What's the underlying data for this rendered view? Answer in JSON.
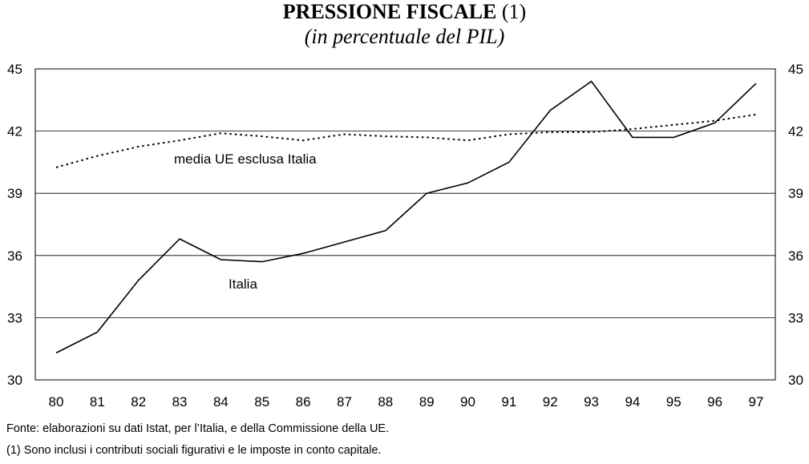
{
  "chart_data": {
    "type": "line",
    "title": "PRESSIONE FISCALE",
    "title_suffix": "(1)",
    "subtitle": "(in percentuale del PIL)",
    "xlabel": "",
    "ylabel": "",
    "categories": [
      "80",
      "81",
      "82",
      "83",
      "84",
      "85",
      "86",
      "87",
      "88",
      "89",
      "90",
      "91",
      "92",
      "93",
      "94",
      "95",
      "96",
      "97"
    ],
    "ylim": [
      30,
      45
    ],
    "yticks": [
      30,
      33,
      36,
      39,
      42,
      45
    ],
    "grid": true,
    "legend": "none",
    "series": [
      {
        "name": "Italia",
        "style": "solid",
        "values": [
          31.3,
          32.3,
          34.8,
          36.8,
          35.8,
          35.7,
          36.1,
          36.65,
          37.2,
          39.0,
          39.5,
          40.5,
          43.0,
          44.4,
          41.7,
          41.7,
          42.4,
          44.3
        ]
      },
      {
        "name": "media UE esclusa Italia",
        "style": "dotted",
        "values": [
          40.25,
          40.8,
          41.25,
          41.55,
          41.9,
          41.75,
          41.55,
          41.85,
          41.75,
          41.7,
          41.55,
          41.85,
          41.95,
          41.95,
          42.1,
          42.3,
          42.5,
          42.8
        ]
      }
    ],
    "annotations": [
      "media UE esclusa Italia",
      "Italia"
    ],
    "colors": {
      "lines": "#000000",
      "grid": "#000000",
      "background": "#ffffff"
    }
  },
  "notes": {
    "source": "Fonte: elaborazioni su dati Istat, per l’Italia, e della Commissione della UE.",
    "footnote": "(1) Sono inclusi i contributi sociali figurativi e le imposte in conto capitale."
  }
}
